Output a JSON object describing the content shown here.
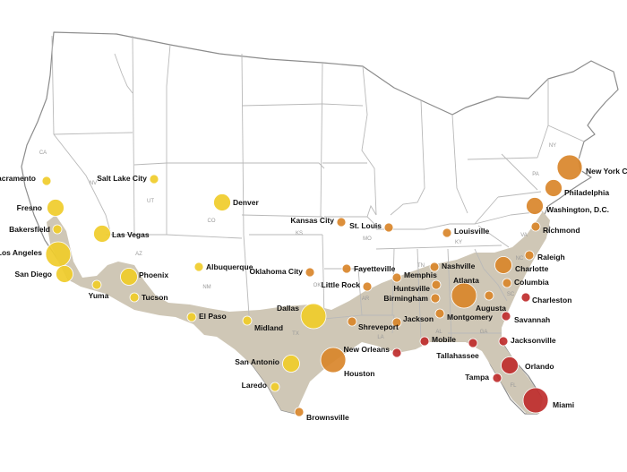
{
  "colors": {
    "land": "#ffffff",
    "border": "#b9b9b9",
    "coast": "#8c8c8c",
    "region": "#cfc7b6",
    "yellow": "#f0cc2a",
    "orange": "#d9862a",
    "red": "#bf2c2c",
    "yellow_edge": "#ffffff",
    "label": "#111111",
    "abbr": "#9a9a9a"
  },
  "state_abbreviations": [
    "CA",
    "NV",
    "UT",
    "AZ",
    "CO",
    "NM",
    "TX",
    "OK",
    "KS",
    "MO",
    "AR",
    "LA",
    "TN",
    "KY",
    "AL",
    "GA",
    "FL",
    "SC",
    "NC",
    "VA",
    "PA",
    "NY"
  ],
  "cities": [
    {
      "name": "Sacramento",
      "color": "yellow",
      "size": "small"
    },
    {
      "name": "Fresno",
      "color": "yellow",
      "size": "medium"
    },
    {
      "name": "Bakersfield",
      "color": "yellow",
      "size": "small"
    },
    {
      "name": "Los Angeles",
      "color": "yellow",
      "size": "large"
    },
    {
      "name": "San Diego",
      "color": "yellow",
      "size": "medium"
    },
    {
      "name": "Salt Lake City",
      "color": "yellow",
      "size": "small"
    },
    {
      "name": "Las Vegas",
      "color": "yellow",
      "size": "medium"
    },
    {
      "name": "Phoenix",
      "color": "yellow",
      "size": "medium"
    },
    {
      "name": "Tucson",
      "color": "yellow",
      "size": "small"
    },
    {
      "name": "Yuma",
      "color": "yellow",
      "size": "small"
    },
    {
      "name": "Denver",
      "color": "yellow",
      "size": "medium"
    },
    {
      "name": "Albuquerque",
      "color": "yellow",
      "size": "small"
    },
    {
      "name": "El Paso",
      "color": "yellow",
      "size": "small"
    },
    {
      "name": "Midland",
      "color": "yellow",
      "size": "small"
    },
    {
      "name": "Dallas",
      "color": "yellow",
      "size": "large"
    },
    {
      "name": "San Antonio",
      "color": "yellow",
      "size": "medium"
    },
    {
      "name": "Laredo",
      "color": "yellow",
      "size": "small"
    },
    {
      "name": "Houston",
      "color": "orange",
      "size": "large"
    },
    {
      "name": "Brownsville",
      "color": "orange",
      "size": "small"
    },
    {
      "name": "Kansas City",
      "color": "orange",
      "size": "small"
    },
    {
      "name": "St. Louis",
      "color": "orange",
      "size": "small"
    },
    {
      "name": "Oklahoma City",
      "color": "orange",
      "size": "small"
    },
    {
      "name": "Fayetteville",
      "color": "orange",
      "size": "small"
    },
    {
      "name": "Little Rock",
      "color": "orange",
      "size": "small"
    },
    {
      "name": "Shreveport",
      "color": "orange",
      "size": "small"
    },
    {
      "name": "Memphis",
      "color": "orange",
      "size": "small"
    },
    {
      "name": "Nashville",
      "color": "orange",
      "size": "small"
    },
    {
      "name": "Louisville",
      "color": "orange",
      "size": "small"
    },
    {
      "name": "Huntsville",
      "color": "orange",
      "size": "small"
    },
    {
      "name": "Birmingham",
      "color": "orange",
      "size": "small"
    },
    {
      "name": "Jackson",
      "color": "orange",
      "size": "small"
    },
    {
      "name": "Montgomery",
      "color": "orange",
      "size": "small"
    },
    {
      "name": "Atlanta",
      "color": "orange",
      "size": "large"
    },
    {
      "name": "Augusta",
      "color": "orange",
      "size": "small"
    },
    {
      "name": "Columbia",
      "color": "orange",
      "size": "small"
    },
    {
      "name": "Charlotte",
      "color": "orange",
      "size": "medium"
    },
    {
      "name": "Raleigh",
      "color": "orange",
      "size": "small"
    },
    {
      "name": "Richmond",
      "color": "orange",
      "size": "small"
    },
    {
      "name": "Washington, D.C.",
      "color": "orange",
      "size": "medium"
    },
    {
      "name": "Philadelphia",
      "color": "orange",
      "size": "medium"
    },
    {
      "name": "New York City",
      "color": "orange",
      "size": "large"
    },
    {
      "name": "Charleston",
      "color": "red",
      "size": "small"
    },
    {
      "name": "Savannah",
      "color": "red",
      "size": "small"
    },
    {
      "name": "Jacksonville",
      "color": "red",
      "size": "small"
    },
    {
      "name": "Tallahassee",
      "color": "red",
      "size": "small"
    },
    {
      "name": "Mobile",
      "color": "red",
      "size": "small"
    },
    {
      "name": "New Orleans",
      "color": "red",
      "size": "small"
    },
    {
      "name": "Orlando",
      "color": "red",
      "size": "medium"
    },
    {
      "name": "Tampa",
      "color": "red",
      "size": "small"
    },
    {
      "name": "Miami",
      "color": "red",
      "size": "large"
    }
  ]
}
